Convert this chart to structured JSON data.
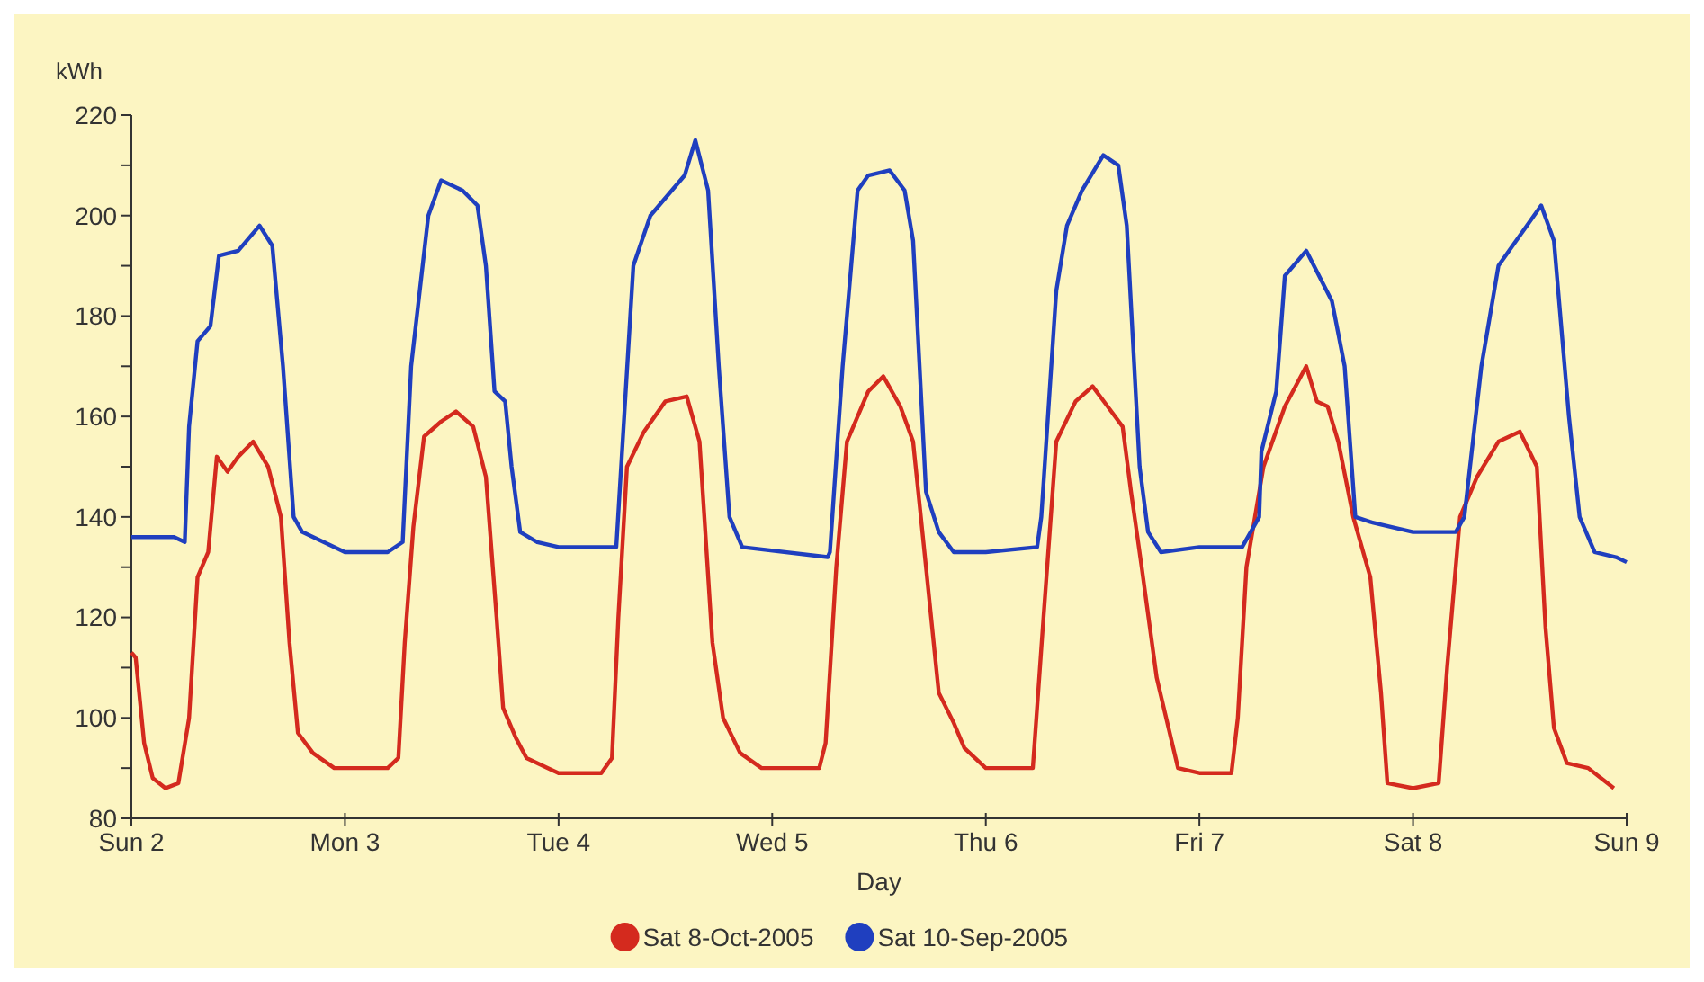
{
  "chart_data": {
    "type": "line",
    "ylabel": "kWh",
    "xlabel": "Day",
    "xlim": [
      "2005-10-02",
      "2005-10-09"
    ],
    "ylim": [
      80,
      220
    ],
    "xticks": [
      {
        "value": "2005-10-02",
        "label": "Sun 2"
      },
      {
        "value": "2005-10-03",
        "label": "Mon 3"
      },
      {
        "value": "2005-10-04",
        "label": "Tue 4"
      },
      {
        "value": "2005-10-05",
        "label": "Wed 5"
      },
      {
        "value": "2005-10-06",
        "label": "Thu 6"
      },
      {
        "value": "2005-10-07",
        "label": "Fri 7"
      },
      {
        "value": "2005-10-08",
        "label": "Sat 8"
      },
      {
        "value": "2005-10-09",
        "label": "Sun 9"
      }
    ],
    "yticks": [
      80,
      {
        "value": 90,
        "label": null
      },
      100,
      {
        "value": 110,
        "label": null
      },
      120,
      {
        "value": 130,
        "label": null
      },
      140,
      {
        "value": 150,
        "label": null
      },
      160,
      {
        "value": 170,
        "label": null
      },
      180,
      {
        "value": 190,
        "label": null
      },
      200,
      {
        "value": 210,
        "label": null
      },
      220
    ],
    "grid": false,
    "legend": "bottom",
    "marker": "none",
    "line_style": "solid",
    "series": [
      {
        "name": "Sat 8-Oct-2005",
        "color": "#d42a1e",
        "x": [
          "2005-10-02T00:00",
          "2005-10-02T00:29",
          "2005-10-02T01:26",
          "2005-10-02T02:24",
          "2005-10-02T03:50",
          "2005-10-02T05:17",
          "2005-10-02T06:29",
          "2005-10-02T07:26",
          "2005-10-02T08:38",
          "2005-10-02T09:36",
          "2005-10-02T10:48",
          "2005-10-02T12:00",
          "2005-10-02T13:41",
          "2005-10-02T15:22",
          "2005-10-02T16:48",
          "2005-10-02T17:46",
          "2005-10-02T18:43",
          "2005-10-02T20:24",
          "2005-10-02T22:48",
          "2005-10-03T00:00",
          "2005-10-03T04:48",
          "2005-10-03T06:00",
          "2005-10-03T06:43",
          "2005-10-03T07:41",
          "2005-10-03T08:53",
          "2005-10-03T10:48",
          "2005-10-03T12:29",
          "2005-10-03T14:24",
          "2005-10-03T15:50",
          "2005-10-03T17:02",
          "2005-10-03T17:46",
          "2005-10-03T19:12",
          "2005-10-03T20:24",
          "2005-10-03T22:48",
          "2005-10-04T00:00",
          "2005-10-04T04:48",
          "2005-10-04T06:00",
          "2005-10-04T06:43",
          "2005-10-04T07:41",
          "2005-10-04T09:36",
          "2005-10-04T12:00",
          "2005-10-04T14:24",
          "2005-10-04T15:50",
          "2005-10-04T17:17",
          "2005-10-04T18:29",
          "2005-10-04T20:24",
          "2005-10-04T22:48",
          "2005-10-05T00:00",
          "2005-10-05T05:17",
          "2005-10-05T06:00",
          "2005-10-05T07:12",
          "2005-10-05T08:24",
          "2005-10-05T10:48",
          "2005-10-05T12:29",
          "2005-10-05T14:24",
          "2005-10-05T15:50",
          "2005-10-05T17:17",
          "2005-10-05T18:43",
          "2005-10-05T20:24",
          "2005-10-05T21:36",
          "2005-10-06T00:00",
          "2005-10-06T05:17",
          "2005-10-06T06:29",
          "2005-10-06T07:55",
          "2005-10-06T10:05",
          "2005-10-06T12:00",
          "2005-10-06T13:41",
          "2005-10-06T15:22",
          "2005-10-06T16:19",
          "2005-10-06T17:31",
          "2005-10-06T19:12",
          "2005-10-06T21:36",
          "2005-10-07T00:00",
          "2005-10-07T03:36",
          "2005-10-07T04:19",
          "2005-10-07T05:17",
          "2005-10-07T07:12",
          "2005-10-07T09:36",
          "2005-10-07T12:00",
          "2005-10-07T13:12",
          "2005-10-07T14:24",
          "2005-10-07T15:36",
          "2005-10-07T17:17",
          "2005-10-07T19:12",
          "2005-10-07T20:24",
          "2005-10-07T21:07",
          "2005-10-08T00:00",
          "2005-10-08T02:53",
          "2005-10-08T03:50",
          "2005-10-08T05:17",
          "2005-10-08T07:12",
          "2005-10-08T09:36",
          "2005-10-08T12:00",
          "2005-10-08T13:55",
          "2005-10-08T14:53",
          "2005-10-08T15:50",
          "2005-10-08T17:17",
          "2005-10-08T19:41",
          "2005-10-08T21:07",
          "2005-10-08T22:34"
        ],
        "values": [
          113,
          112,
          95,
          88,
          86,
          87,
          100,
          128,
          133,
          152,
          149,
          152,
          155,
          150,
          140,
          115,
          97,
          93,
          90,
          90,
          90,
          92,
          115,
          138,
          156,
          159,
          161,
          158,
          148,
          120,
          102,
          96,
          92,
          90,
          89,
          89,
          92,
          120,
          150,
          157,
          163,
          164,
          155,
          115,
          100,
          93,
          90,
          90,
          90,
          95,
          130,
          155,
          165,
          168,
          162,
          155,
          130,
          105,
          99,
          94,
          90,
          90,
          120,
          155,
          163,
          166,
          162,
          158,
          145,
          130,
          108,
          90,
          89,
          89,
          100,
          130,
          150,
          162,
          170,
          163,
          162,
          155,
          140,
          128,
          105,
          87,
          86,
          87,
          110,
          140,
          148,
          155,
          157,
          150,
          118,
          98,
          91,
          90,
          88,
          86
        ]
      },
      {
        "name": "Sat 10-Sep-2005",
        "color": "#1f3fbf",
        "x": [
          "2005-10-02T00:00",
          "2005-10-02T04:48",
          "2005-10-02T06:00",
          "2005-10-02T06:29",
          "2005-10-02T07:26",
          "2005-10-02T08:53",
          "2005-10-02T09:50",
          "2005-10-02T12:00",
          "2005-10-02T14:24",
          "2005-10-02T15:50",
          "2005-10-02T17:02",
          "2005-10-02T18:14",
          "2005-10-02T19:12",
          "2005-10-02T21:36",
          "2005-10-03T00:00",
          "2005-10-03T04:48",
          "2005-10-03T06:29",
          "2005-10-03T07:26",
          "2005-10-03T08:24",
          "2005-10-03T09:22",
          "2005-10-03T10:48",
          "2005-10-03T13:12",
          "2005-10-03T14:53",
          "2005-10-03T15:50",
          "2005-10-03T16:48",
          "2005-10-03T18:00",
          "2005-10-03T18:43",
          "2005-10-03T19:41",
          "2005-10-03T21:36",
          "2005-10-04T00:00",
          "2005-10-04T06:29",
          "2005-10-04T08:24",
          "2005-10-04T10:19",
          "2005-10-04T14:10",
          "2005-10-04T15:22",
          "2005-10-04T16:48",
          "2005-10-04T18:00",
          "2005-10-04T19:12",
          "2005-10-04T20:38",
          "2005-10-05T06:14",
          "2005-10-05T06:29",
          "2005-10-05T07:55",
          "2005-10-05T09:36",
          "2005-10-05T10:48",
          "2005-10-05T13:12",
          "2005-10-05T14:53",
          "2005-10-05T15:50",
          "2005-10-05T17:17",
          "2005-10-05T18:43",
          "2005-10-05T20:24",
          "2005-10-06T00:00",
          "2005-10-06T05:46",
          "2005-10-06T06:14",
          "2005-10-06T07:55",
          "2005-10-06T09:07",
          "2005-10-06T10:48",
          "2005-10-06T13:12",
          "2005-10-06T14:53",
          "2005-10-06T15:50",
          "2005-10-06T17:17",
          "2005-10-06T18:14",
          "2005-10-06T19:41",
          "2005-10-07T00:00",
          "2005-10-07T04:48",
          "2005-10-07T06:43",
          "2005-10-07T06:58",
          "2005-10-07T08:38",
          "2005-10-07T09:36",
          "2005-10-07T12:00",
          "2005-10-07T14:53",
          "2005-10-07T16:19",
          "2005-10-07T17:31",
          "2005-10-07T19:12",
          "2005-10-07T21:36",
          "2005-10-08T00:00",
          "2005-10-08T04:48",
          "2005-10-08T05:46",
          "2005-10-08T07:41",
          "2005-10-08T09:36",
          "2005-10-08T12:00",
          "2005-10-08T14:24",
          "2005-10-08T15:50",
          "2005-10-08T17:31",
          "2005-10-08T18:43",
          "2005-10-08T20:24",
          "2005-10-08T22:48",
          "2005-10-09T00:00"
        ],
        "values": [
          136,
          136,
          135,
          158,
          175,
          178,
          192,
          193,
          198,
          194,
          170,
          140,
          137,
          135,
          133,
          133,
          135,
          170,
          185,
          200,
          207,
          205,
          202,
          190,
          165,
          163,
          150,
          137,
          135,
          134,
          134,
          190,
          200,
          208,
          215,
          205,
          170,
          140,
          134,
          132,
          133,
          170,
          205,
          208,
          209,
          205,
          195,
          145,
          137,
          133,
          133,
          134,
          140,
          185,
          198,
          205,
          212,
          210,
          198,
          150,
          137,
          133,
          134,
          134,
          140,
          153,
          165,
          188,
          193,
          183,
          170,
          140,
          139,
          138,
          137,
          137,
          140,
          170,
          190,
          196,
          202,
          195,
          160,
          140,
          133,
          132,
          131
        ]
      }
    ]
  }
}
